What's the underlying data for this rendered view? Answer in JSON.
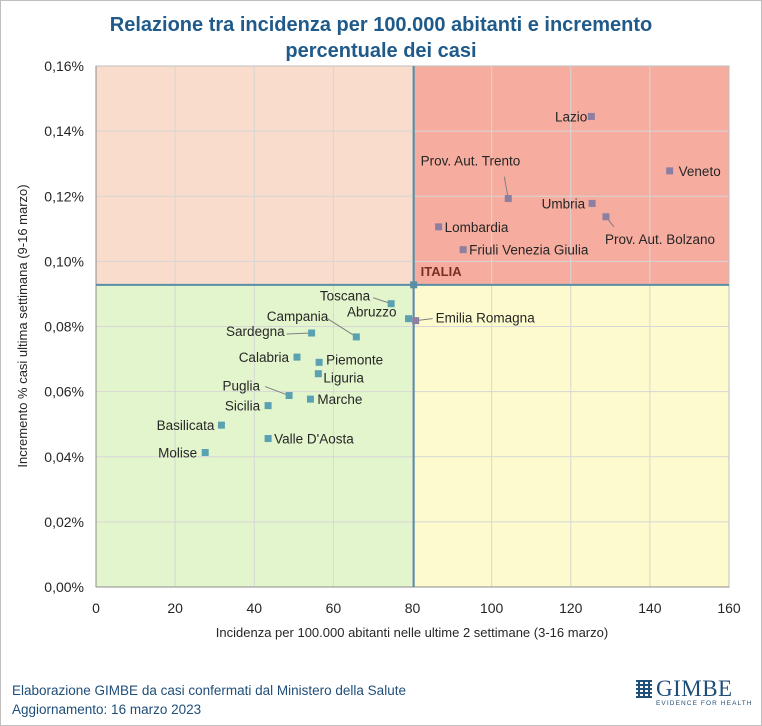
{
  "chart_data": {
    "type": "scatter",
    "title_lines": [
      "Relazione tra incidenza per 100.000 abitanti e incremento",
      "percentuale dei casi"
    ],
    "xlabel": "Incidenza per 100.000 abitanti nelle ultime 2 settimane (3-16 marzo)",
    "ylabel": "Incremento % casi ultima settimana (9-16 marzo)",
    "xlim": [
      0,
      160
    ],
    "ylim": [
      0,
      0.16
    ],
    "x_ticks": [
      0,
      20,
      40,
      60,
      80,
      100,
      120,
      140,
      160
    ],
    "x_tick_labels": [
      "0",
      "20",
      "40",
      "60",
      "80",
      "100",
      "120",
      "140",
      "160"
    ],
    "y_ticks": [
      0,
      0.02,
      0.04,
      0.06,
      0.08,
      0.1,
      0.12,
      0.14,
      0.16
    ],
    "y_tick_labels": [
      "0,00%",
      "0,02%",
      "0,04%",
      "0,06%",
      "0,08%",
      "0,10%",
      "0,12%",
      "0,14%",
      "0,16%"
    ],
    "grid": true,
    "reference": {
      "label": "ITALIA",
      "x": 80.3,
      "y": 0.0928
    },
    "quadrant_colors": {
      "top_left": "#f9dccb",
      "top_right": "#f6ac9e",
      "bottom_left": "#e3f5cc",
      "bottom_right": "#fdfbcd"
    },
    "point_colors": {
      "high_incidence": "#8c7fa2",
      "low_incidence": "#5aa1b1"
    },
    "reference_line_color": "#5a8ea6",
    "points": [
      {
        "label": "Lazio",
        "x": 125.2,
        "y": 0.1445
      },
      {
        "label": "Veneto",
        "x": 145.0,
        "y": 0.1278
      },
      {
        "label": "Prov. Aut. Trento",
        "x": 104.2,
        "y": 0.1193
      },
      {
        "label": "Umbria",
        "x": 125.4,
        "y": 0.1178
      },
      {
        "label": "Prov. Aut. Bolzano",
        "x": 128.9,
        "y": 0.1137
      },
      {
        "label": "Lombardia",
        "x": 86.6,
        "y": 0.1106
      },
      {
        "label": "Friuli Venezia Giulia",
        "x": 92.8,
        "y": 0.1036
      },
      {
        "label": "Toscana",
        "x": 74.6,
        "y": 0.087
      },
      {
        "label": "Abruzzo",
        "x": 79.0,
        "y": 0.0824
      },
      {
        "label": "Emilia Romagna",
        "x": 80.8,
        "y": 0.0818
      },
      {
        "label": "Campania",
        "x": 65.8,
        "y": 0.0768
      },
      {
        "label": "Sardegna",
        "x": 54.5,
        "y": 0.078
      },
      {
        "label": "Calabria",
        "x": 50.8,
        "y": 0.0706
      },
      {
        "label": "Piemonte",
        "x": 56.4,
        "y": 0.069
      },
      {
        "label": "Liguria",
        "x": 56.2,
        "y": 0.0655
      },
      {
        "label": "Puglia",
        "x": 48.8,
        "y": 0.0588
      },
      {
        "label": "Marche",
        "x": 54.2,
        "y": 0.0577
      },
      {
        "label": "Sicilia",
        "x": 43.5,
        "y": 0.0557
      },
      {
        "label": "Basilicata",
        "x": 31.7,
        "y": 0.0497
      },
      {
        "label": "Valle D'Aosta",
        "x": 43.5,
        "y": 0.0456
      },
      {
        "label": "Molise",
        "x": 27.6,
        "y": 0.0413
      }
    ]
  },
  "footer": {
    "line1_prefix": "Elaborazione GIMBE",
    "line1_rest": "da casi confermati dal Ministero della Salute",
    "line2": "Aggiornamento: 16 marzo 2023"
  },
  "logo": {
    "name": "GIMBE",
    "tagline": "EVIDENCE FOR HEALTH",
    "color": "#1f4e79"
  }
}
